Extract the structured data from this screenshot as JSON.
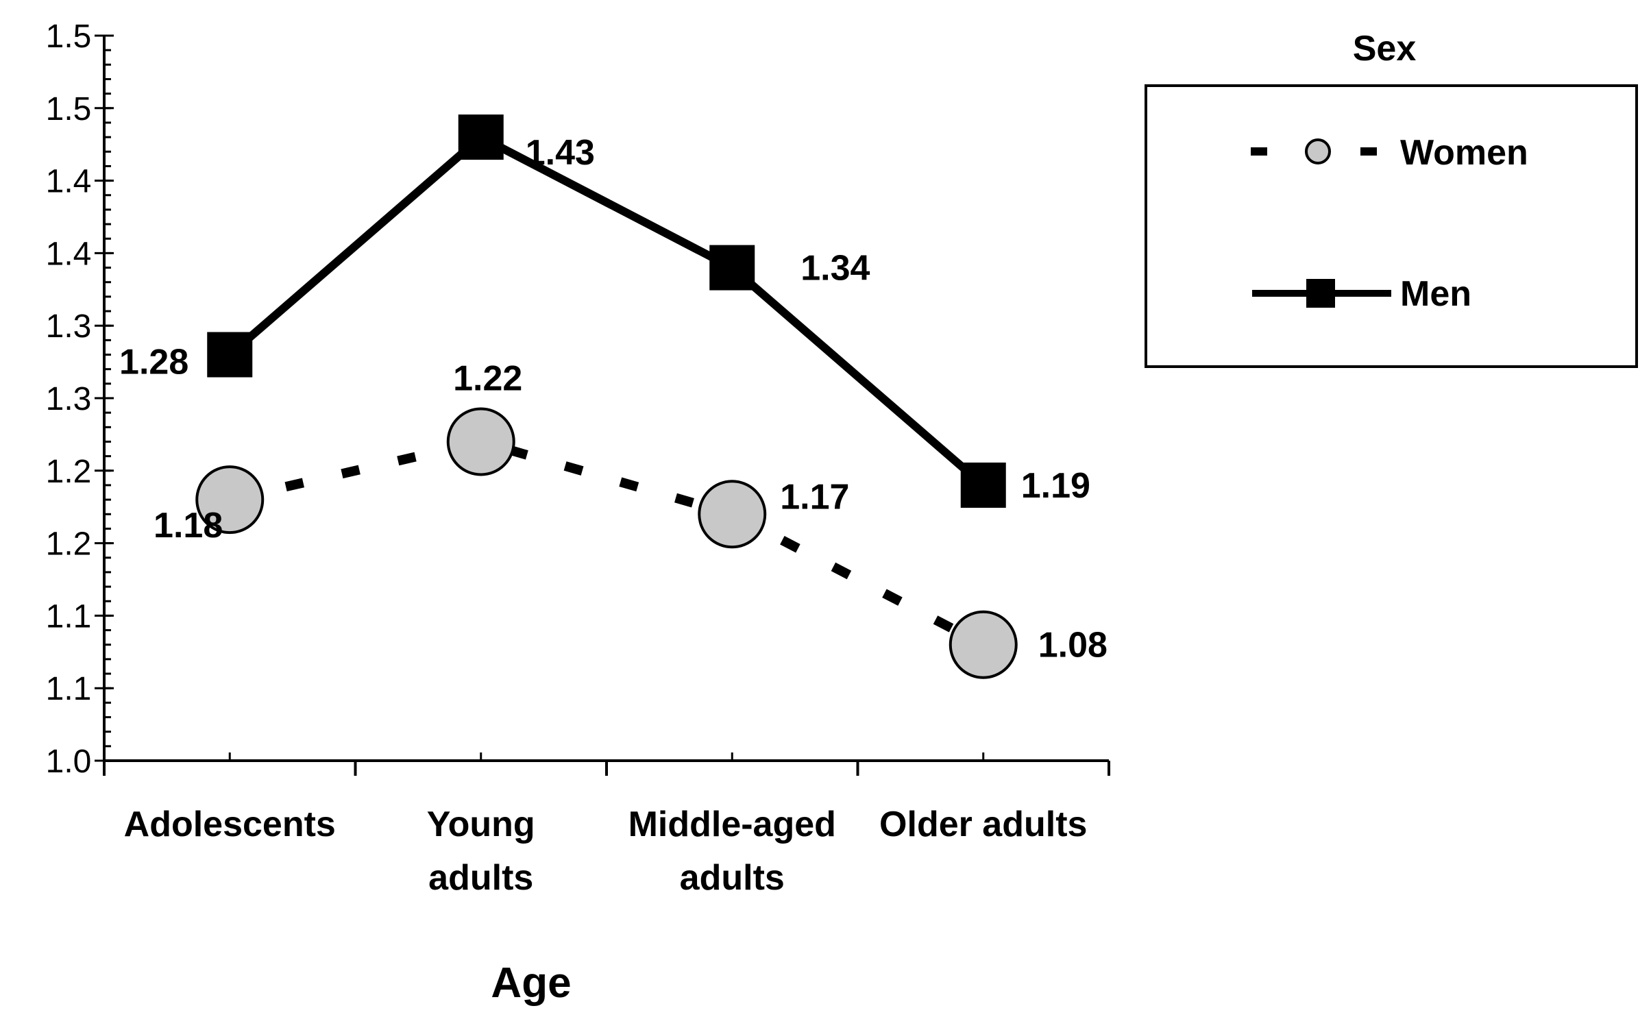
{
  "chart_data": {
    "type": "line",
    "title": "",
    "xlabel": "Age",
    "ylabel": "",
    "categories": [
      [
        "Adolescents"
      ],
      [
        "Young",
        "adults"
      ],
      [
        "Middle-aged",
        "adults"
      ],
      [
        "Older adults"
      ]
    ],
    "ylim": [
      1.0,
      1.5
    ],
    "y_ticks": [
      1.0,
      1.05,
      1.1,
      1.15,
      1.2,
      1.25,
      1.3,
      1.35,
      1.4,
      1.45,
      1.5
    ],
    "y_tick_labels": [
      "1.0",
      "1.1",
      "1.1",
      "1.2",
      "1.2",
      "1.3",
      "1.3",
      "1.4",
      "1.4",
      "1.5",
      "1.5"
    ],
    "grid": false,
    "legend": {
      "title": "Sex",
      "placement": "top-right"
    },
    "series": [
      {
        "name": "Women",
        "values": [
          1.18,
          1.22,
          1.17,
          1.08
        ],
        "labels": [
          "1.18",
          "1.22",
          "1.17",
          "1.08"
        ],
        "line_style": "dashed",
        "marker": "circle",
        "color": "#000000",
        "marker_fill": "#c8c8c8"
      },
      {
        "name": "Men",
        "values": [
          1.28,
          1.43,
          1.34,
          1.19
        ],
        "labels": [
          "1.28",
          "1.43",
          "1.34",
          "1.19"
        ],
        "line_style": "solid",
        "marker": "square",
        "color": "#000000",
        "marker_fill": "#000000"
      }
    ]
  }
}
